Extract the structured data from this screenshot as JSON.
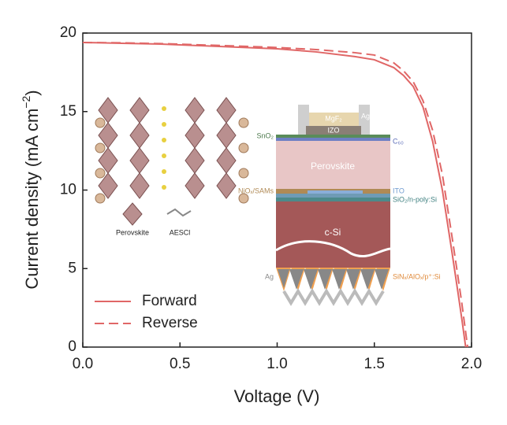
{
  "chart_data": {
    "type": "line",
    "xlabel": "Voltage (V)",
    "ylabel": {
      "text": "Current density (mA cm",
      "sup": "−2",
      "end": ")"
    },
    "xlim": [
      0,
      2.0
    ],
    "ylim": [
      0,
      20
    ],
    "xticks": [
      {
        "value": 0,
        "label": "0.0"
      },
      {
        "value": 0.5,
        "label": "0.5"
      },
      {
        "value": 1.0,
        "label": "1.0"
      },
      {
        "value": 1.5,
        "label": "1.5"
      },
      {
        "value": 2.0,
        "label": "2.0"
      }
    ],
    "yticks": [
      0,
      5,
      10,
      15,
      20
    ],
    "legend": "lower left",
    "series": [
      {
        "name": "Forward",
        "color": "#e06666",
        "style": "solid",
        "x": [
          0,
          0.2,
          0.4,
          0.6,
          0.8,
          1.0,
          1.2,
          1.4,
          1.5,
          1.6,
          1.65,
          1.7,
          1.75,
          1.8,
          1.85,
          1.9,
          1.93,
          1.95,
          1.97
        ],
        "values": [
          19.4,
          19.35,
          19.3,
          19.2,
          19.1,
          19.0,
          18.8,
          18.5,
          18.3,
          17.8,
          17.3,
          16.6,
          15.3,
          13.1,
          10.0,
          6.0,
          3.5,
          1.8,
          0
        ]
      },
      {
        "name": "Reverse",
        "color": "#e06666",
        "style": "dashed",
        "x": [
          0,
          0.2,
          0.4,
          0.6,
          0.8,
          1.0,
          1.2,
          1.4,
          1.5,
          1.6,
          1.65,
          1.7,
          1.75,
          1.8,
          1.85,
          1.9,
          1.93,
          1.95,
          1.98
        ],
        "values": [
          19.4,
          19.38,
          19.33,
          19.25,
          19.17,
          19.08,
          18.95,
          18.75,
          18.6,
          18.1,
          17.6,
          16.9,
          15.7,
          13.8,
          11.0,
          7.0,
          4.5,
          2.8,
          0
        ]
      }
    ],
    "inset_labels": {
      "perovskite_icon": "Perovskite",
      "aescl_icon": "AESCl",
      "mgf2": "MgF₂",
      "ag_top": "Ag",
      "izo": "IZO",
      "sno2": "SnO₂",
      "c60": "C₆₀",
      "perovskite": "Perovskite",
      "niox": "NiOₓ/SAMs",
      "ito": "ITO",
      "sio2": "SiO₂/n-poly:Si",
      "csi": "c-Si",
      "ag_bottom": "Ag",
      "sinx": "SiNₓ/AlOₓ/p⁺:Si"
    }
  }
}
